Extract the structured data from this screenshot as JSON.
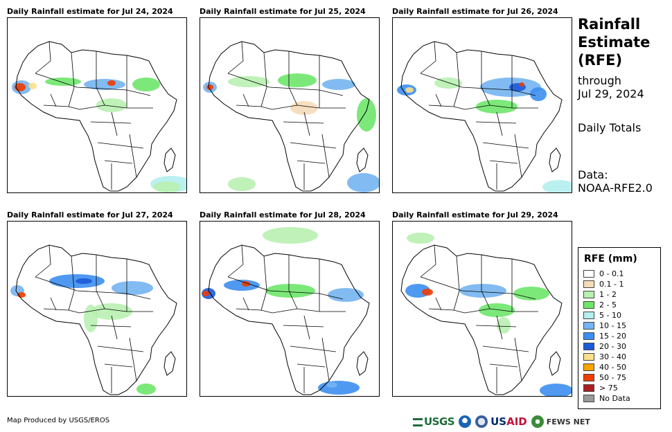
{
  "panels": [
    {
      "title": "Daily Rainfall estimate for Jul 24, 2024"
    },
    {
      "title": "Daily Rainfall estimate for Jul 25, 2024"
    },
    {
      "title": "Daily Rainfall estimate for Jul 26, 2024"
    },
    {
      "title": "Daily Rainfall estimate for Jul 27, 2024"
    },
    {
      "title": "Daily Rainfall estimate for Jul 28, 2024"
    },
    {
      "title": "Daily Rainfall estimate for Jul 29, 2024"
    }
  ],
  "sidebar": {
    "title_line1": "Rainfall",
    "title_line2": "Estimate",
    "title_line3": "(RFE)",
    "through_label": "through",
    "through_date": "Jul 29, 2024",
    "totals": "Daily Totals",
    "data_label": "Data:",
    "data_source": "NOAA-RFE2.0"
  },
  "legend": {
    "title": "RFE (mm)",
    "items": [
      {
        "label": "0 - 0.1",
        "color": "#ffffff"
      },
      {
        "label": "0.1 - 1",
        "color": "#f5dcb9"
      },
      {
        "label": "1 - 2",
        "color": "#b8f0b0"
      },
      {
        "label": "2 - 5",
        "color": "#6ee66a"
      },
      {
        "label": "5 - 10",
        "color": "#b4eef0"
      },
      {
        "label": "10 - 15",
        "color": "#74b4f0"
      },
      {
        "label": "15 - 20",
        "color": "#3c8ef0"
      },
      {
        "label": "20 - 30",
        "color": "#1c5ad8"
      },
      {
        "label": "30 - 40",
        "color": "#f8e08c"
      },
      {
        "label": "40 - 50",
        "color": "#f8a400"
      },
      {
        "label": "50 - 75",
        "color": "#f03c00"
      },
      {
        "label": "> 75",
        "color": "#aa1e1e"
      },
      {
        "label": "No Data",
        "color": "#9a9a9a"
      }
    ]
  },
  "credit": "Map Produced by USGS/EROS",
  "logos": {
    "usgs": "USGS",
    "usaid_us": "US",
    "usaid_aid": "AID",
    "fews": "FEWS NET"
  }
}
